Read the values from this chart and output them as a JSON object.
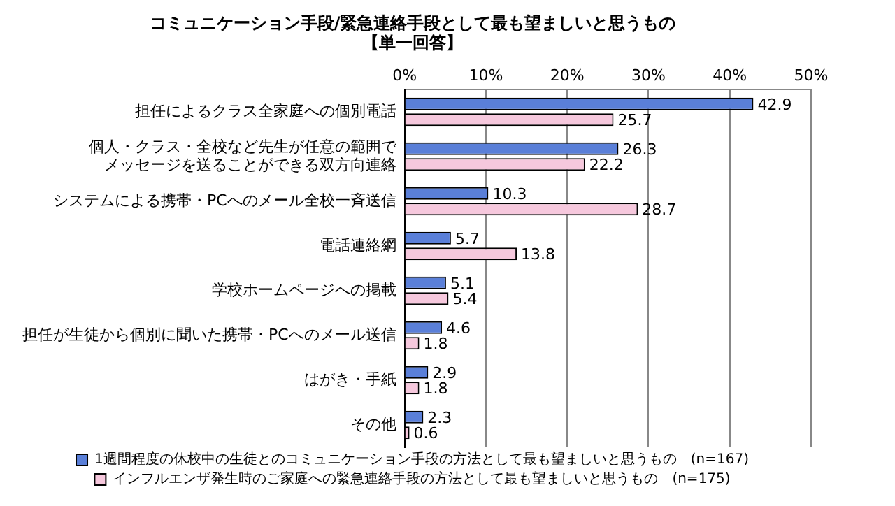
{
  "chart_data": {
    "type": "bar",
    "orientation": "horizontal",
    "title": "コミュニケーション手段/緊急連絡手段として最も望ましいと思うもの",
    "subtitle": "【単一回答】",
    "categories": [
      "担任によるクラス全家庭への個別電話",
      "個人・クラス・全校など先生が任意の範囲でメッセージを送ることができる双方向連絡",
      "システムによる携帯・PCへのメール全校一斉送信",
      "電話連絡網",
      "学校ホームページへの掲載",
      "担任が生徒から個別に聞いた携帯・PCへのメール送信",
      "はがき・手紙",
      "その他"
    ],
    "series": [
      {
        "name": "1週間程度の休校中の生徒とのコミュニケーション手段の方法として最も望ましいと思うもの　(n=167)",
        "color": "#5a7fd8",
        "values": [
          42.9,
          26.3,
          10.3,
          5.7,
          5.1,
          4.6,
          2.9,
          2.3
        ]
      },
      {
        "name": "インフルエンザ発生時のご家庭への緊急連絡手段の方法として最も望ましいと思うもの　(n=175)",
        "color": "#f6c8dd",
        "values": [
          25.7,
          22.2,
          28.7,
          13.8,
          5.4,
          1.8,
          1.8,
          0.6
        ]
      }
    ],
    "xlim": [
      0,
      50
    ],
    "xticks": [
      {
        "value": 0,
        "label": "0%"
      },
      {
        "value": 10,
        "label": "10%"
      },
      {
        "value": 20,
        "label": "20%"
      },
      {
        "value": 30,
        "label": "30%"
      },
      {
        "value": 40,
        "label": "40%"
      },
      {
        "value": 50,
        "label": "50%"
      }
    ],
    "grid": "x",
    "legend": "bottom",
    "data_labels": true
  }
}
